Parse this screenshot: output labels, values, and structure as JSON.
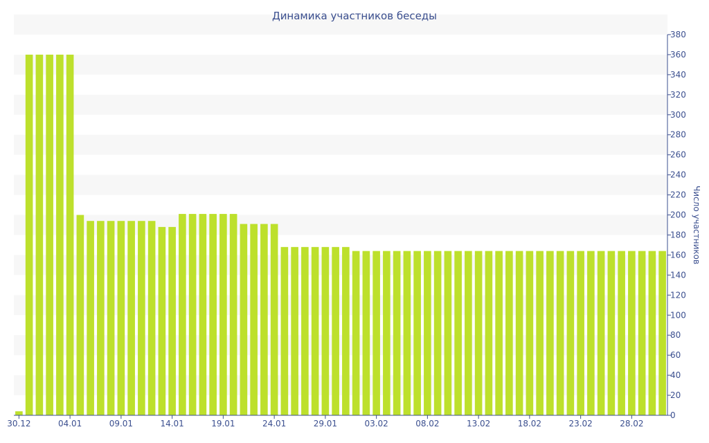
{
  "chart_data": {
    "type": "bar",
    "title": "Динамика участников беседы",
    "xlabel": "",
    "ylabel": "Число участников",
    "ylim": [
      0,
      380
    ],
    "y_ticks": [
      0,
      20,
      40,
      60,
      80,
      100,
      120,
      140,
      160,
      180,
      200,
      220,
      240,
      260,
      280,
      300,
      320,
      340,
      360,
      380
    ],
    "y_axis_side": "right",
    "grid": "alternating horizontal bands",
    "bar_color": "#bde02c",
    "band_color": "#f7f7f7",
    "text_color": "#3b4f8f",
    "x_tick_labels": [
      "30.12",
      "04.01",
      "09.01",
      "14.01",
      "19.01",
      "24.01",
      "29.01",
      "03.02",
      "08.02",
      "13.02",
      "18.02",
      "23.02",
      "28.02"
    ],
    "categories": [
      "30.12",
      "31.12",
      "01.01",
      "02.01",
      "03.01",
      "04.01",
      "05.01",
      "06.01",
      "07.01",
      "08.01",
      "09.01",
      "10.01",
      "11.01",
      "12.01",
      "13.01",
      "14.01",
      "15.01",
      "16.01",
      "17.01",
      "18.01",
      "19.01",
      "20.01",
      "21.01",
      "22.01",
      "23.01",
      "24.01",
      "25.01",
      "26.01",
      "27.01",
      "28.01",
      "29.01",
      "30.01",
      "31.01",
      "01.02",
      "02.02",
      "03.02",
      "04.02",
      "05.02",
      "06.02",
      "07.02",
      "08.02",
      "09.02",
      "10.02",
      "11.02",
      "12.02",
      "13.02",
      "14.02",
      "15.02",
      "16.02",
      "17.02",
      "18.02",
      "19.02",
      "20.02",
      "21.02",
      "22.02",
      "23.02",
      "24.02",
      "25.02",
      "26.02",
      "27.02",
      "28.02",
      "01.03",
      "02.03",
      "03.03"
    ],
    "values": [
      4,
      360,
      360,
      360,
      360,
      360,
      200,
      194,
      194,
      194,
      194,
      194,
      194,
      194,
      188,
      188,
      201,
      201,
      201,
      201,
      201,
      201,
      191,
      191,
      191,
      191,
      168,
      168,
      168,
      168,
      168,
      168,
      168,
      164,
      164,
      164,
      164,
      164,
      164,
      164,
      164,
      164,
      164,
      164,
      164,
      164,
      164,
      164,
      164,
      164,
      164,
      164,
      164,
      164,
      164,
      164,
      164,
      164,
      164,
      164,
      164,
      164,
      164,
      164
    ]
  }
}
